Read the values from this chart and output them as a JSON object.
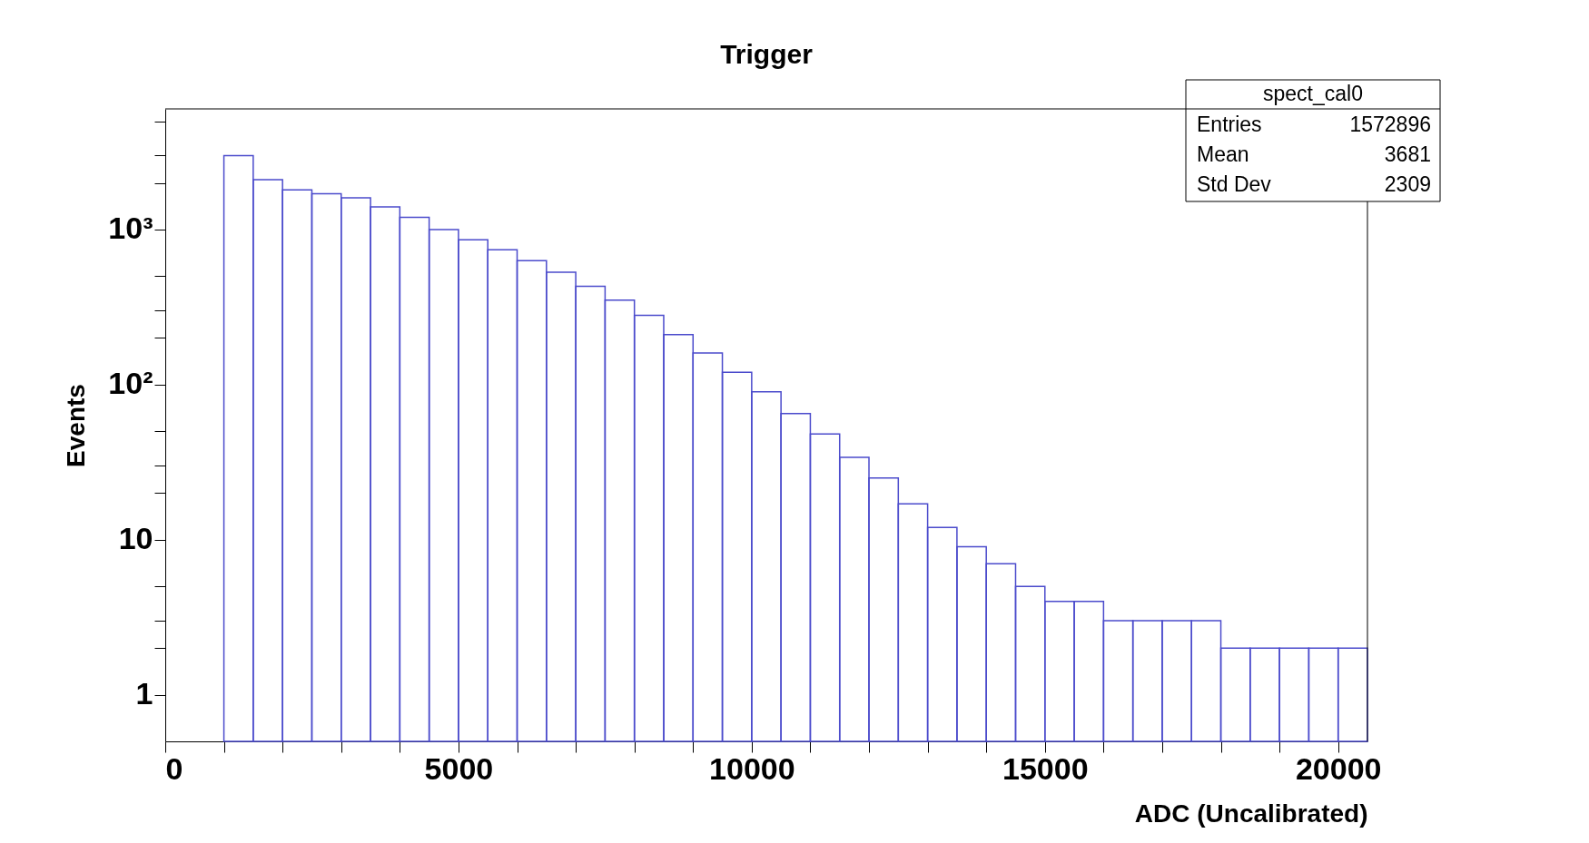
{
  "chart_data": {
    "type": "histogram",
    "title": "Trigger",
    "xlabel": "ADC (Uncalibrated)",
    "ylabel": "Events",
    "bins": [
      1000,
      1500,
      2000,
      2500,
      3000,
      3500,
      4000,
      4500,
      5000,
      5500,
      6000,
      6500,
      7000,
      7500,
      8000,
      8500,
      9000,
      9500,
      10000,
      10500,
      11000,
      11500,
      12000,
      12500,
      13000,
      13500,
      14000,
      14500,
      15000,
      15500,
      16000,
      16500,
      17000,
      17500,
      18000,
      18500,
      19000,
      19500,
      20000,
      20500
    ],
    "values": [
      3000,
      2100,
      1800,
      1700,
      1600,
      1400,
      1200,
      1000,
      860,
      740,
      630,
      530,
      430,
      350,
      280,
      210,
      160,
      120,
      90,
      65,
      48,
      34,
      25,
      17,
      12,
      9,
      7,
      5,
      4,
      4,
      3,
      3,
      3,
      3,
      2,
      2,
      2,
      2,
      2
    ],
    "color": "#4b4bcc",
    "log": "y",
    "grid": false,
    "xlim": [
      0,
      20500
    ],
    "ylim": [
      0.5,
      6000
    ],
    "xticks": [
      0,
      {
        "value": 1000,
        "label": null
      },
      {
        "value": 2000,
        "label": null
      },
      {
        "value": 3000,
        "label": null
      },
      {
        "value": 4000,
        "label": null
      },
      5000,
      {
        "value": 6000,
        "label": null
      },
      {
        "value": 7000,
        "label": null
      },
      {
        "value": 8000,
        "label": null
      },
      {
        "value": 9000,
        "label": null
      },
      10000,
      {
        "value": 11000,
        "label": null
      },
      {
        "value": 12000,
        "label": null
      },
      {
        "value": 13000,
        "label": null
      },
      {
        "value": 14000,
        "label": null
      },
      15000,
      {
        "value": 16000,
        "label": null
      },
      {
        "value": 17000,
        "label": null
      },
      {
        "value": 18000,
        "label": null
      },
      {
        "value": 19000,
        "label": null
      },
      20000
    ],
    "yticks": [
      1,
      {
        "value": 2,
        "label": null
      },
      {
        "value": 3,
        "label": null
      },
      {
        "value": 5,
        "label": null
      },
      10,
      {
        "value": 20,
        "label": null
      },
      {
        "value": 30,
        "label": null
      },
      {
        "value": 50,
        "label": null
      },
      {
        "value": 100,
        "label": "10²"
      },
      {
        "value": 200,
        "label": null
      },
      {
        "value": 300,
        "label": null
      },
      {
        "value": 500,
        "label": null
      },
      {
        "value": 1000,
        "label": "10³"
      },
      {
        "value": 2000,
        "label": null
      },
      {
        "value": 3000,
        "label": null
      },
      {
        "value": 5000,
        "label": null
      }
    ],
    "annotations": [
      "spect_cal0",
      "Entries",
      "1572896",
      "Mean",
      "3681",
      "Std Dev",
      "2309"
    ]
  }
}
